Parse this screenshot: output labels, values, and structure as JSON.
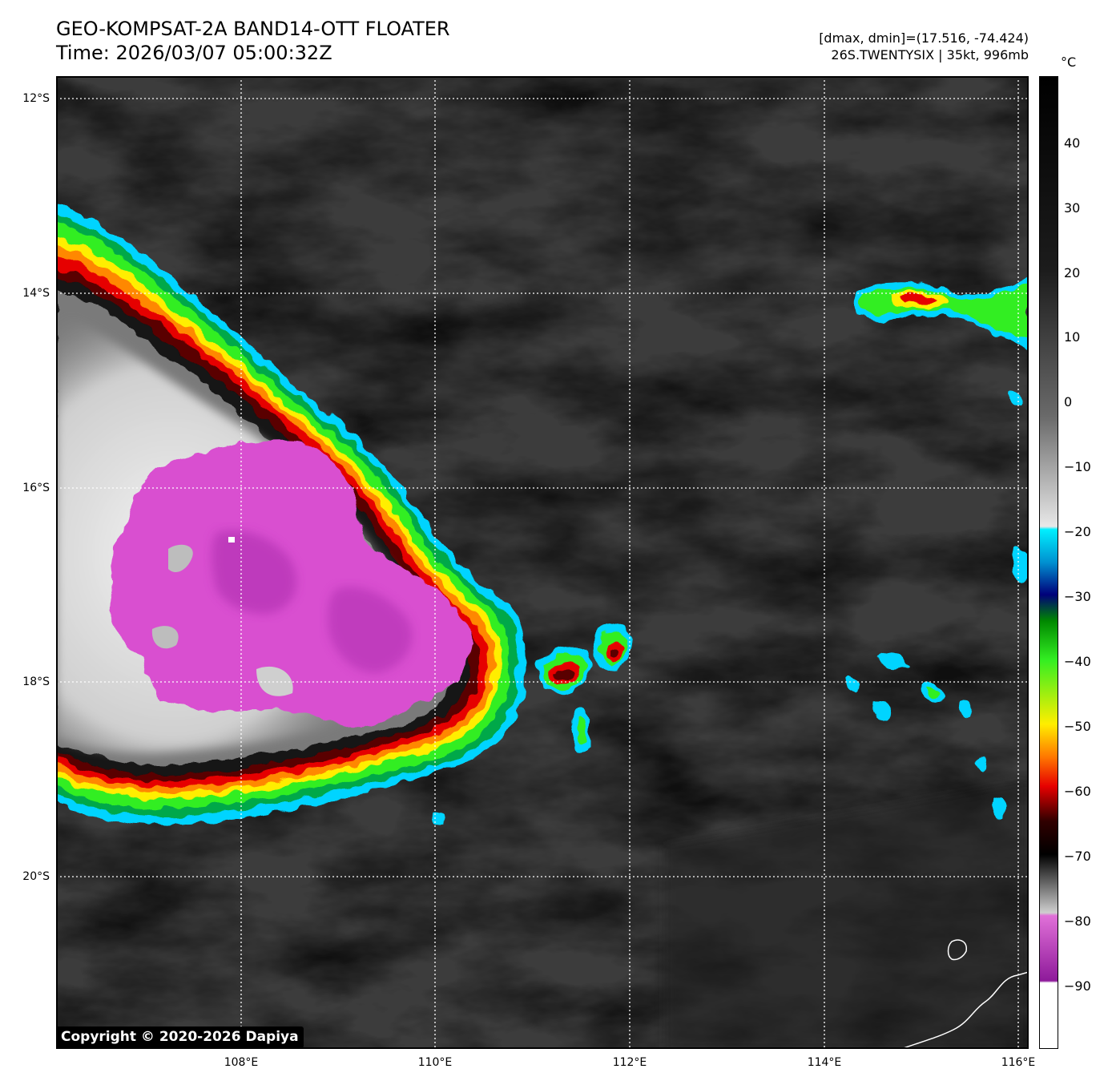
{
  "header": {
    "title_line1": "GEO-KOMPSAT-2A BAND14-OTT FLOATER",
    "title_line2": "Time: 2026/03/07 05:00:32Z",
    "info_line1": "[dmax, dmin]=(17.516, -74.424)",
    "info_line2": "26S.TWENTYSIX | 35kt, 996mb"
  },
  "map": {
    "lat_labels": [
      "12°S",
      "14°S",
      "16°S",
      "18°S",
      "20°S"
    ],
    "lon_labels": [
      "108°E",
      "110°E",
      "112°E",
      "114°E",
      "116°E"
    ],
    "lat_range": [
      -21.8,
      -11.8
    ],
    "lon_range": [
      106.05,
      116.05
    ],
    "copyright": "Copyright © 2020-2026 Dapiya"
  },
  "colorbar": {
    "unit": "°C",
    "ticks": [
      "40",
      "30",
      "20",
      "10",
      "0",
      "−10",
      "−20",
      "−30",
      "−40",
      "−50",
      "−60",
      "−70",
      "−80",
      "−90"
    ],
    "range": [
      -100,
      50
    ]
  },
  "colors": {
    "cold_top": "#d94fd0",
    "deep_cold": "#8e1a9a",
    "cyan": "#00e5ff",
    "green": "#22dd22",
    "yellow": "#ffee00",
    "red": "#ff1a00",
    "dark_red": "#6a0000"
  }
}
